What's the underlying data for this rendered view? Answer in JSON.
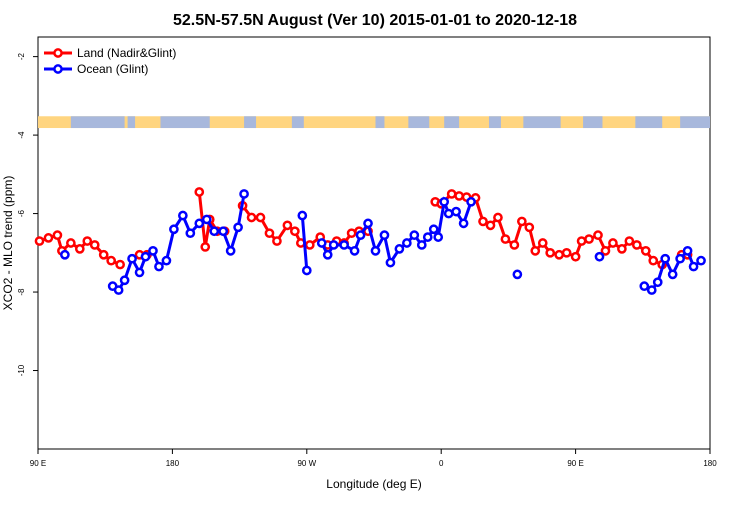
{
  "chart_data": {
    "type": "line",
    "title": "52.5N-57.5N August (Ver 10)   2015-01-01 to 2020-12-18",
    "xlabel": "Longitude (deg E)",
    "ylabel": "XCO2 - MLO trend (ppm)",
    "x_tick_labels": [
      "90 E",
      "180",
      "90 W",
      "0",
      "90 E",
      "180"
    ],
    "y_tick_labels": [
      "-2",
      "-4",
      "-6",
      "-8",
      "-10"
    ],
    "x_ticks": [
      90,
      180,
      270,
      360,
      450,
      540
    ],
    "y_ticks": [
      -2,
      -4,
      -6,
      -8,
      -10
    ],
    "xlim": [
      90,
      540
    ],
    "ylim": [
      -12,
      -1.5
    ],
    "legend_position": "top-left",
    "grid": false,
    "series": [
      {
        "name": "Land (Nadir&Glint)",
        "color": "#ff0000",
        "points": [
          [
            91,
            -6.7
          ],
          [
            97,
            -6.62
          ],
          [
            103,
            -6.55
          ],
          [
            106,
            -6.95
          ],
          [
            112,
            -6.75
          ],
          [
            118,
            -6.9
          ],
          [
            123,
            -6.7
          ],
          [
            128,
            -6.8
          ],
          [
            134,
            -7.05
          ],
          [
            139,
            -7.2
          ],
          [
            145,
            -7.3
          ],
          [
            158,
            -7.05
          ],
          [
            163,
            -7.05
          ],
          [
            198,
            -5.45
          ],
          [
            202,
            -6.85
          ],
          [
            205,
            -6.15
          ],
          [
            210,
            -6.45
          ],
          [
            215,
            -6.45
          ],
          [
            227,
            -5.8
          ],
          [
            233,
            -6.1
          ],
          [
            239,
            -6.1
          ],
          [
            245,
            -6.5
          ],
          [
            250,
            -6.7
          ],
          [
            257,
            -6.3
          ],
          [
            262,
            -6.45
          ],
          [
            266,
            -6.75
          ],
          [
            272,
            -6.8
          ],
          [
            279,
            -6.6
          ],
          [
            284,
            -6.8
          ],
          [
            290,
            -6.7
          ],
          [
            295,
            -6.75
          ],
          [
            300,
            -6.5
          ],
          [
            305,
            -6.45
          ],
          [
            311,
            -6.45
          ],
          [
            356,
            -5.7
          ],
          [
            360,
            -5.75
          ],
          [
            367,
            -5.5
          ],
          [
            372,
            -5.55
          ],
          [
            377,
            -5.58
          ],
          [
            383,
            -5.6
          ],
          [
            388,
            -6.2
          ],
          [
            393,
            -6.3
          ],
          [
            398,
            -6.1
          ],
          [
            403,
            -6.65
          ],
          [
            409,
            -6.8
          ],
          [
            414,
            -6.2
          ],
          [
            419,
            -6.35
          ],
          [
            423,
            -6.95
          ],
          [
            428,
            -6.75
          ],
          [
            433,
            -7.0
          ],
          [
            439,
            -7.05
          ],
          [
            444,
            -7.0
          ],
          [
            450,
            -7.1
          ],
          [
            454,
            -6.7
          ],
          [
            459,
            -6.65
          ],
          [
            465,
            -6.55
          ],
          [
            470,
            -6.95
          ],
          [
            475,
            -6.75
          ],
          [
            481,
            -6.9
          ],
          [
            486,
            -6.7
          ],
          [
            491,
            -6.8
          ],
          [
            497,
            -6.95
          ],
          [
            502,
            -7.2
          ],
          [
            508,
            -7.3
          ],
          [
            521,
            -7.05
          ],
          [
            525,
            -7.05
          ]
        ]
      },
      {
        "name": "Ocean (Glint)",
        "color": "#0000ff",
        "points": [
          [
            108,
            -7.05
          ],
          [
            140,
            -7.85
          ],
          [
            144,
            -7.95
          ],
          [
            148,
            -7.7
          ],
          [
            153,
            -7.15
          ],
          [
            158,
            -7.5
          ],
          [
            162,
            -7.1
          ],
          [
            167,
            -6.95
          ],
          [
            171,
            -7.35
          ],
          [
            176,
            -7.2
          ],
          [
            181,
            -6.4
          ],
          [
            187,
            -6.05
          ],
          [
            192,
            -6.5
          ],
          [
            198,
            -6.25
          ],
          [
            203,
            -6.15
          ],
          [
            208,
            -6.45
          ],
          [
            214,
            -6.45
          ],
          [
            219,
            -6.95
          ],
          [
            224,
            -6.35
          ],
          [
            228,
            -5.5
          ],
          [
            267,
            -6.05
          ],
          [
            270,
            -7.45
          ],
          [
            280,
            -6.75
          ],
          [
            284,
            -7.05
          ],
          [
            288,
            -6.8
          ],
          [
            295,
            -6.8
          ],
          [
            302,
            -6.95
          ],
          [
            306,
            -6.55
          ],
          [
            311,
            -6.25
          ],
          [
            316,
            -6.95
          ],
          [
            322,
            -6.55
          ],
          [
            326,
            -7.25
          ],
          [
            332,
            -6.9
          ],
          [
            337,
            -6.75
          ],
          [
            342,
            -6.55
          ],
          [
            347,
            -6.8
          ],
          [
            351,
            -6.6
          ],
          [
            355,
            -6.4
          ],
          [
            358,
            -6.6
          ],
          [
            362,
            -5.7
          ],
          [
            365,
            -6.0
          ],
          [
            370,
            -5.95
          ],
          [
            375,
            -6.25
          ],
          [
            380,
            -5.7
          ],
          [
            411,
            -7.55
          ],
          [
            466,
            -7.1
          ],
          [
            496,
            -7.85
          ],
          [
            501,
            -7.95
          ],
          [
            505,
            -7.75
          ],
          [
            510,
            -7.15
          ],
          [
            515,
            -7.55
          ],
          [
            520,
            -7.15
          ],
          [
            525,
            -6.95
          ],
          [
            529,
            -7.35
          ],
          [
            534,
            -7.2
          ]
        ]
      }
    ]
  },
  "map_strip": {
    "land_color": "#ffd580",
    "ocean_color": "#a8b8dc",
    "y_top": -3.52,
    "y_bottom": -3.82
  }
}
